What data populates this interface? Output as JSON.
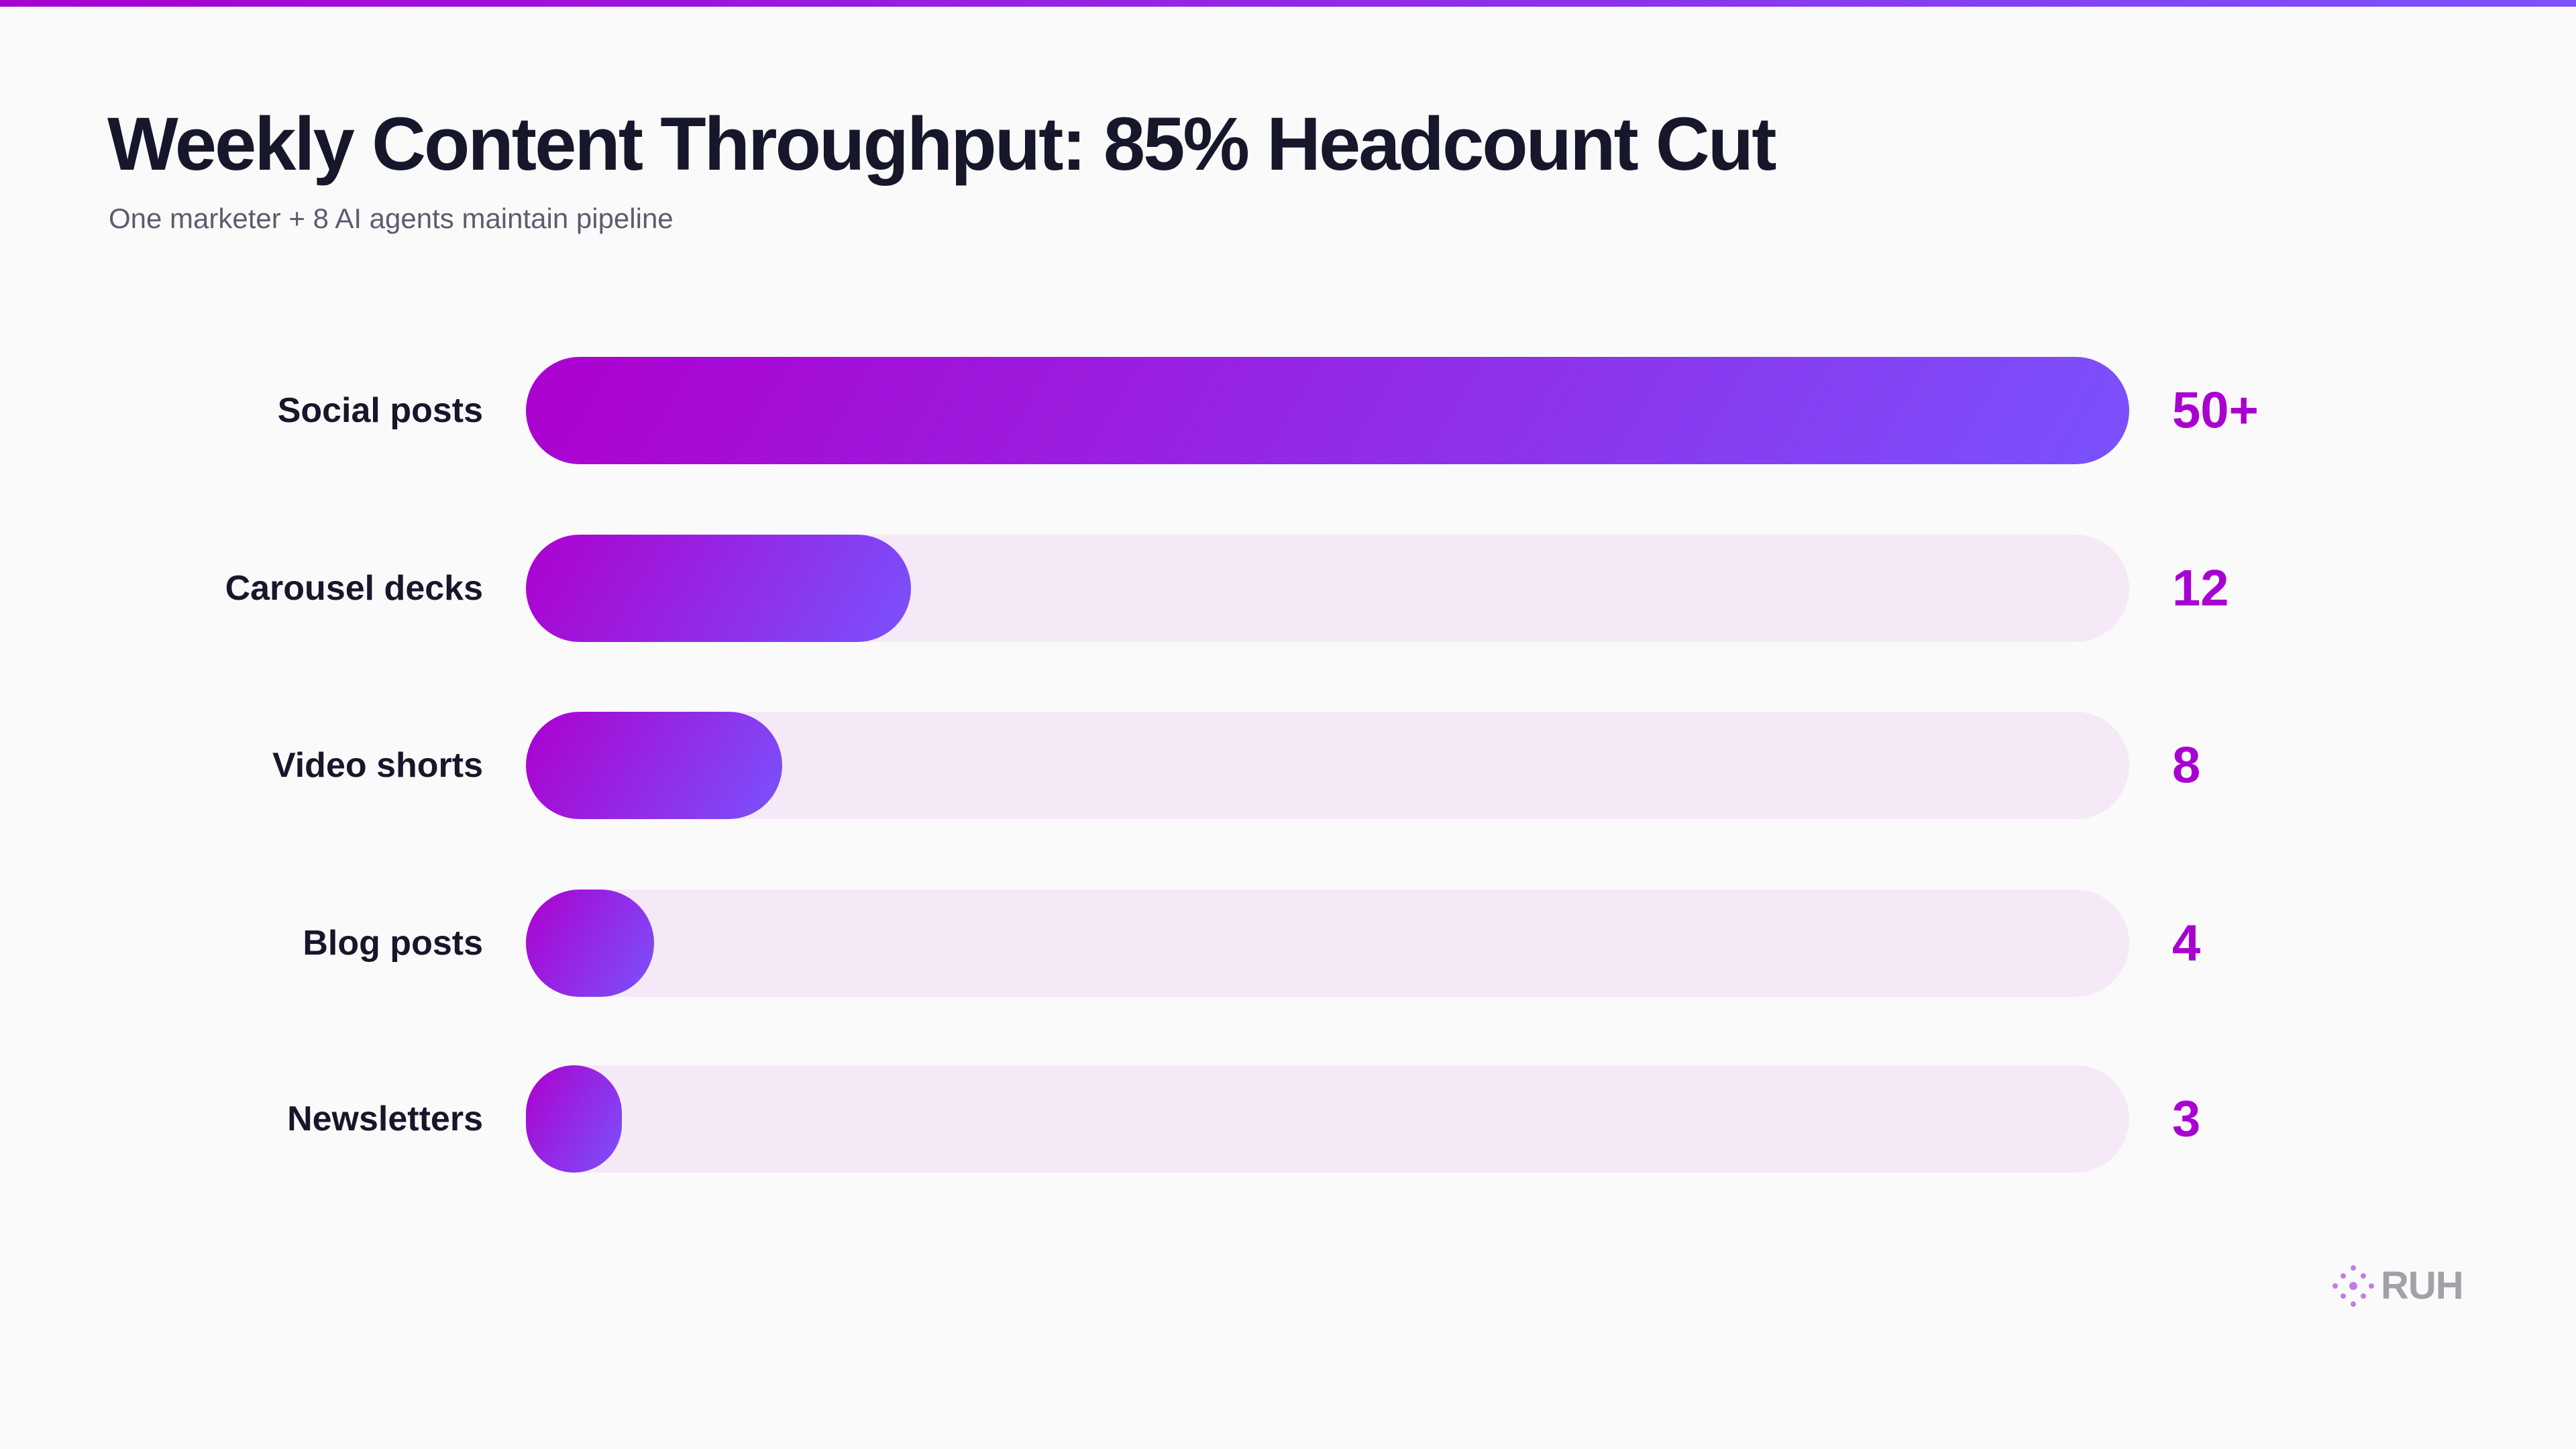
{
  "title": "Weekly Content Throughput: 85% Headcount Cut",
  "subtitle": "One marketer + 8 AI agents maintain pipeline",
  "colors": {
    "accent": "#a800d0",
    "gradient_start": "#ad00cf",
    "gradient_end": "#7a52fc",
    "track": "#f5e9f7"
  },
  "chart_data": {
    "type": "bar",
    "orientation": "horizontal",
    "title": "Weekly Content Throughput: 85% Headcount Cut",
    "subtitle": "One marketer + 8 AI agents maintain pipeline",
    "categories": [
      "Social posts",
      "Carousel decks",
      "Video shorts",
      "Blog posts",
      "Newsletters"
    ],
    "values": [
      50,
      12,
      8,
      4,
      3
    ],
    "value_labels": [
      "50+",
      "12",
      "8",
      "4",
      "3"
    ],
    "xlim": [
      0,
      50
    ],
    "grid": false
  },
  "logo": {
    "text": "RUH",
    "icon": "dot-cluster-icon"
  }
}
